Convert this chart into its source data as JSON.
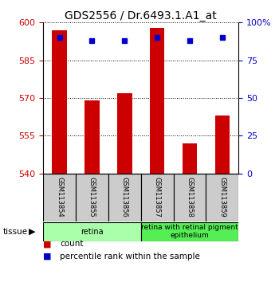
{
  "title": "GDS2556 / Dr.6493.1.A1_at",
  "samples": [
    "GSM113854",
    "GSM113855",
    "GSM113856",
    "GSM113857",
    "GSM113858",
    "GSM113859"
  ],
  "counts": [
    597,
    569,
    572,
    598,
    552,
    563
  ],
  "percentiles": [
    90,
    88,
    88,
    90,
    88,
    90
  ],
  "ylim": [
    540,
    600
  ],
  "yticks": [
    540,
    555,
    570,
    585,
    600
  ],
  "right_ylim": [
    0,
    100
  ],
  "right_yticks": [
    0,
    25,
    50,
    75,
    100
  ],
  "right_yticklabels": [
    "0",
    "25",
    "50",
    "75",
    "100%"
  ],
  "bar_color": "#cc0000",
  "dot_color": "#0000cc",
  "tissue_group1_label": "retina",
  "tissue_group1_samples": [
    0,
    1,
    2
  ],
  "tissue_group1_color": "#aaffaa",
  "tissue_group2_label": "retina with retinal pigment\nepithelium",
  "tissue_group2_samples": [
    3,
    4,
    5
  ],
  "tissue_group2_color": "#55ee55",
  "legend_label1": "count",
  "legend_color1": "#cc0000",
  "legend_label2": "percentile rank within the sample",
  "legend_color2": "#0000cc",
  "sample_box_color": "#cccccc",
  "tick_fontsize": 8,
  "title_fontsize": 10,
  "bar_width": 0.45
}
